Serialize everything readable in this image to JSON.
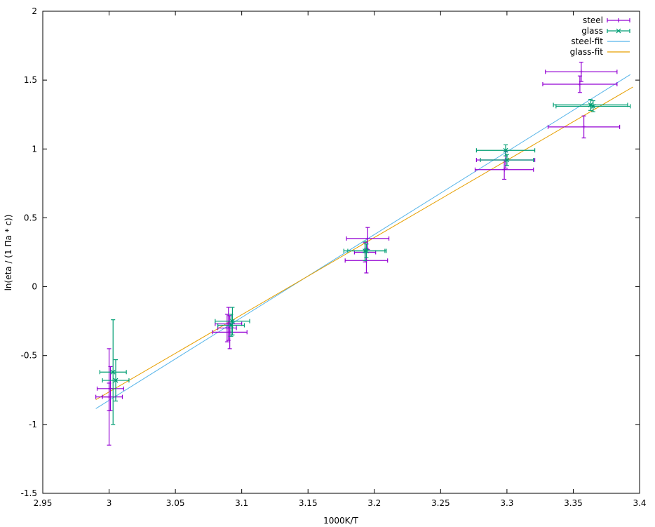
{
  "chart_data": {
    "type": "scatter",
    "xlabel": "1000K/T",
    "ylabel": "ln(eta / (1 Па * с))",
    "xlim": [
      2.95,
      3.4
    ],
    "ylim": [
      -1.5,
      2
    ],
    "xticks": [
      "2.95",
      "3",
      "3.05",
      "3.1",
      "3.15",
      "3.2",
      "3.25",
      "3.3",
      "3.35",
      "3.4"
    ],
    "yticks": [
      "-1.5",
      "-1",
      "-0.5",
      "0",
      "0.5",
      "1",
      "1.5",
      "2"
    ],
    "legend_position": "top-right",
    "series": [
      {
        "name": "steel",
        "kind": "errorbars",
        "marker": "plus",
        "color": "#9400d3",
        "points": [
          {
            "x": 3.0,
            "y": -0.8,
            "xerr": 0.01,
            "yerr": 0.1
          },
          {
            "x": 3.001,
            "y": -0.74,
            "xerr": 0.01,
            "yerr": 0.16
          },
          {
            "x": 3.0,
            "y": -0.8,
            "xerr": 0.005,
            "yerr": 0.35
          },
          {
            "x": 3.09,
            "y": -0.27,
            "xerr": 0.01,
            "yerr": 0.12
          },
          {
            "x": 3.091,
            "y": -0.33,
            "xerr": 0.013,
            "yerr": 0.12
          },
          {
            "x": 3.089,
            "y": -0.3,
            "xerr": 0.007,
            "yerr": 0.1
          },
          {
            "x": 3.195,
            "y": 0.35,
            "xerr": 0.016,
            "yerr": 0.08
          },
          {
            "x": 3.194,
            "y": 0.19,
            "xerr": 0.016,
            "yerr": 0.09
          },
          {
            "x": 3.193,
            "y": 0.25,
            "xerr": 0.008,
            "yerr": 0.07
          },
          {
            "x": 3.299,
            "y": 0.92,
            "xerr": 0.022,
            "yerr": 0.06
          },
          {
            "x": 3.298,
            "y": 0.85,
            "xerr": 0.022,
            "yerr": 0.07
          },
          {
            "x": 3.356,
            "y": 1.56,
            "xerr": 0.027,
            "yerr": 0.07
          },
          {
            "x": 3.355,
            "y": 1.47,
            "xerr": 0.028,
            "yerr": 0.06
          },
          {
            "x": 3.358,
            "y": 1.16,
            "xerr": 0.027,
            "yerr": 0.08
          }
        ]
      },
      {
        "name": "glass",
        "kind": "errorbars",
        "marker": "cross",
        "color": "#009e73",
        "points": [
          {
            "x": 3.003,
            "y": -0.62,
            "xerr": 0.01,
            "yerr": 0.38
          },
          {
            "x": 3.005,
            "y": -0.68,
            "xerr": 0.01,
            "yerr": 0.15
          },
          {
            "x": 3.093,
            "y": -0.25,
            "xerr": 0.013,
            "yerr": 0.1
          },
          {
            "x": 3.092,
            "y": -0.28,
            "xerr": 0.01,
            "yerr": 0.08
          },
          {
            "x": 3.193,
            "y": 0.26,
            "xerr": 0.016,
            "yerr": 0.07
          },
          {
            "x": 3.194,
            "y": 0.26,
            "xerr": 0.014,
            "yerr": 0.05
          },
          {
            "x": 3.299,
            "y": 0.99,
            "xerr": 0.022,
            "yerr": 0.04
          },
          {
            "x": 3.3,
            "y": 0.92,
            "xerr": 0.02,
            "yerr": 0.04
          },
          {
            "x": 3.363,
            "y": 1.32,
            "xerr": 0.028,
            "yerr": 0.04
          },
          {
            "x": 3.365,
            "y": 1.31,
            "xerr": 0.028,
            "yerr": 0.04
          }
        ]
      },
      {
        "name": "steel-fit",
        "kind": "line",
        "color": "#56b4e9",
        "x": [
          2.99,
          3.393
        ],
        "y": [
          -0.885,
          1.54
        ]
      },
      {
        "name": "glass-fit",
        "kind": "line",
        "color": "#e69f00",
        "x": [
          2.99,
          3.395
        ],
        "y": [
          -0.82,
          1.45
        ]
      }
    ]
  }
}
